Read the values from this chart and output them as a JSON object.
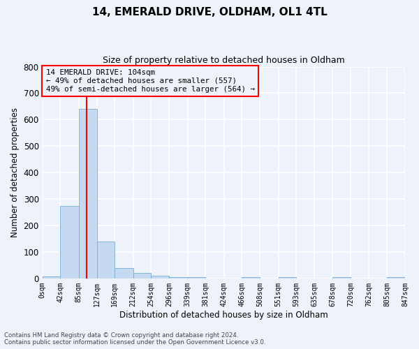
{
  "title": "14, EMERALD DRIVE, OLDHAM, OL1 4TL",
  "subtitle": "Size of property relative to detached houses in Oldham",
  "xlabel": "Distribution of detached houses by size in Oldham",
  "ylabel": "Number of detached properties",
  "bar_color": "#c5d9f0",
  "bar_edge_color": "#7aadd4",
  "background_color": "#eef2fa",
  "bin_edges": [
    0,
    42,
    85,
    127,
    169,
    212,
    254,
    296,
    339,
    381,
    424,
    466,
    508,
    551,
    593,
    635,
    678,
    720,
    762,
    805,
    847
  ],
  "bar_heights": [
    7,
    275,
    640,
    140,
    38,
    20,
    10,
    5,
    5,
    0,
    0,
    5,
    0,
    5,
    0,
    0,
    5,
    0,
    0,
    5
  ],
  "red_line_x": 104,
  "ylim": [
    0,
    800
  ],
  "yticks": [
    0,
    100,
    200,
    300,
    400,
    500,
    600,
    700,
    800
  ],
  "annotation_title": "14 EMERALD DRIVE: 104sqm",
  "annotation_line1": "← 49% of detached houses are smaller (557)",
  "annotation_line2": "49% of semi-detached houses are larger (564) →",
  "footer_line1": "Contains HM Land Registry data © Crown copyright and database right 2024.",
  "footer_line2": "Contains public sector information licensed under the Open Government Licence v3.0."
}
